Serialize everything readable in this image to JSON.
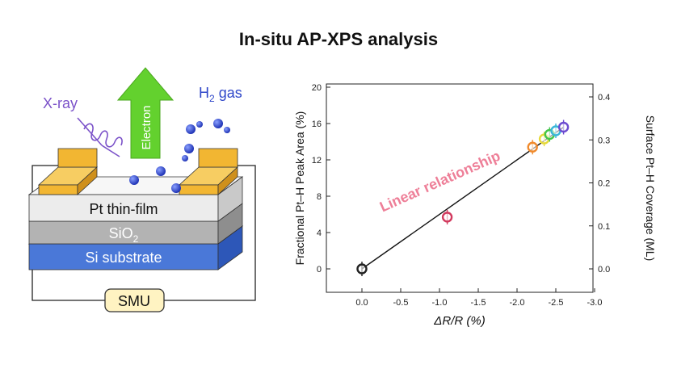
{
  "title": "In-situ AP-XPS analysis",
  "device": {
    "xray_label": "X-ray",
    "electron_label": "Electron",
    "h2_label": "H",
    "h2_subscript": "2",
    "h2_suffix": " gas",
    "layer_pt": "Pt thin-film",
    "layer_sio2": "SiO",
    "layer_sio2_sub": "2",
    "layer_si": "Si substrate",
    "smu_label": "SMU"
  },
  "colors": {
    "electrode": "#f2b632",
    "pt_layer": "#ececec",
    "sio2_layer": "#b3b3b3",
    "si_layer": "#4a78d8",
    "arrow": "#63d12e",
    "xray": "#7b52c9",
    "h2": "#2f47c9",
    "annotation": "#ee7f98",
    "smu": "#fff3c2"
  },
  "chart_data": {
    "type": "scatter",
    "xlabel": "ΔR/R (%)",
    "ylabel_left": "Fractional Pt–H Peak Area (%)",
    "ylabel_right": "Surface Pt–H Coverage (ML)",
    "xlim": [
      0.0,
      -3.0
    ],
    "ylim_left": [
      -2,
      20
    ],
    "ylim_right": [
      -0.05,
      0.42
    ],
    "x_ticks": [
      "0.0",
      "-0.5",
      "-1.0",
      "-1.5",
      "-2.0",
      "-2.5",
      "-3.0"
    ],
    "y_ticks_left": [
      "0",
      "4",
      "8",
      "12",
      "16",
      "20"
    ],
    "y_ticks_right": [
      "0.0",
      "0.1",
      "0.2",
      "0.3",
      "0.4"
    ],
    "annotation": "Linear relationship",
    "points": [
      {
        "x": 0.0,
        "y": 0.0,
        "color": "#222222"
      },
      {
        "x": -1.1,
        "y": 5.7,
        "color": "#d23a5e"
      },
      {
        "x": -2.2,
        "y": 13.4,
        "color": "#f08a2c"
      },
      {
        "x": -2.35,
        "y": 14.3,
        "color": "#e6d93a"
      },
      {
        "x": -2.42,
        "y": 14.8,
        "color": "#43c64a"
      },
      {
        "x": -2.5,
        "y": 15.2,
        "color": "#39b6d8"
      },
      {
        "x": -2.6,
        "y": 15.6,
        "color": "#6c4bd0"
      }
    ],
    "fit_line": {
      "x": [
        0.0,
        -2.6
      ],
      "y": [
        0.0,
        15.6
      ]
    }
  }
}
